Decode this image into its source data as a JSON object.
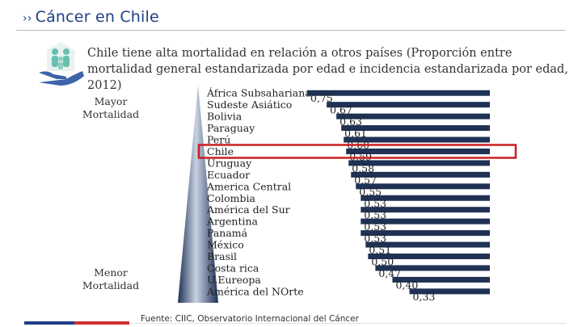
{
  "header": {
    "title": "Cáncer en Chile",
    "chevron": "››"
  },
  "subtitle": "Chile tiene alta mortalidad en relación a otros países (Proporción entre mortalidad general estandarizada por edad e incidencia estandarizada por edad, 2012)",
  "labels": {
    "high": "Mayor Mortalidad",
    "low": "Menor Mortalidad"
  },
  "source": "Fuente: CIIC, Observatorio Internacional del Cáncer",
  "colors": {
    "title": "#1f3f84",
    "bar": "#1f3154",
    "highlight_box": "#cc1f1f",
    "footer_blue": "#1f3f84",
    "footer_red": "#d32f2f"
  },
  "icons": {
    "logo": "family-hands-icon",
    "gradient": "triangle-gradient-icon"
  },
  "chart_data": {
    "type": "bar",
    "orientation": "horizontal",
    "categories": [
      "África Subsahariana",
      "Sudeste Asiático",
      "Bolivia",
      "Paraguay",
      "Perú",
      "Chile",
      "Uruguay",
      "Ecuador",
      "America Central",
      "Colombia",
      "América del Sur",
      "Argentina",
      "Panamá",
      "México",
      "Brasil",
      "Costa rica",
      "U.Eureopa",
      "América del NOrte"
    ],
    "values": [
      0.75,
      0.67,
      0.63,
      0.61,
      0.6,
      0.59,
      0.58,
      0.57,
      0.55,
      0.53,
      0.53,
      0.53,
      0.53,
      0.51,
      0.5,
      0.47,
      0.4,
      0.33
    ],
    "value_labels": [
      "0,75",
      "0,67",
      "0,63",
      "0,61",
      "0,60",
      "0,59",
      "0,58",
      "0,57",
      "0,55",
      "0,53",
      "0,53",
      "0,53",
      "0,53",
      "0,51",
      "0,50",
      "0,47",
      "0,40",
      "0,33"
    ],
    "highlight": "Chile",
    "bars_right_aligned": true,
    "xlim": [
      0,
      0.75
    ]
  }
}
